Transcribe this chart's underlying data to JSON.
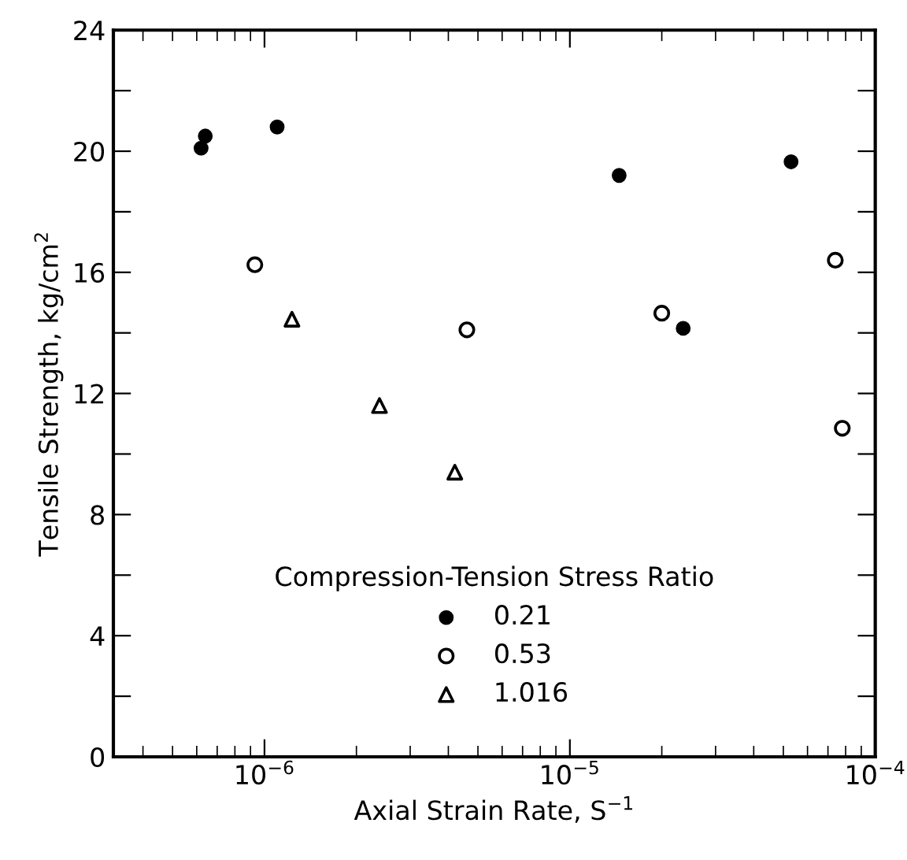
{
  "chart_data": {
    "type": "scatter",
    "xlabel": "Axial Strain Rate, S$^{−1}$",
    "ylabel": "Tensile Strength, kg/cm$^{2}$",
    "legend_title": "Compression-Tension Stress Ratio",
    "log": "x",
    "xlim": [
      3.2e-07,
      0.0001
    ],
    "xticks": [
      {
        "value": 1e-06,
        "label": "10$^{−6}$"
      },
      {
        "value": 1e-05,
        "label": "10$^{−5}$"
      },
      {
        "value": 0.0001,
        "label": "10$^{−4}$"
      }
    ],
    "ylim": [
      0,
      24
    ],
    "yticks": [
      0,
      {
        "value": 2,
        "label": null
      },
      4,
      {
        "value": 6,
        "label": null
      },
      8,
      {
        "value": 10,
        "label": null
      },
      12,
      {
        "value": 14,
        "label": null
      },
      16,
      {
        "value": 18,
        "label": null
      },
      20,
      {
        "value": 22,
        "label": null
      },
      24
    ],
    "grid": false,
    "legend": "bottom",
    "series": [
      {
        "name": "0.21",
        "color": "#000000",
        "marker": "circle",
        "x": [
          6.2e-07,
          6.4e-07,
          1.1e-06,
          1.45e-05,
          2.35e-05,
          5.3e-05
        ],
        "values": [
          20.1,
          20.5,
          20.8,
          19.2,
          14.15,
          19.65
        ]
      },
      {
        "name": "0.53",
        "color": "#000000",
        "marker": "circle",
        "x": [
          9.3e-07,
          4.6e-06,
          2e-05,
          7.4e-05,
          7.8e-05
        ],
        "values": [
          16.25,
          14.1,
          14.65,
          16.4,
          10.85
        ]
      },
      {
        "name": "1.016",
        "color": "#000000",
        "marker": "triangle",
        "x": [
          1.23e-06,
          2.38e-06,
          4.2e-06
        ],
        "values": [
          14.45,
          11.6,
          9.4
        ]
      }
    ]
  }
}
